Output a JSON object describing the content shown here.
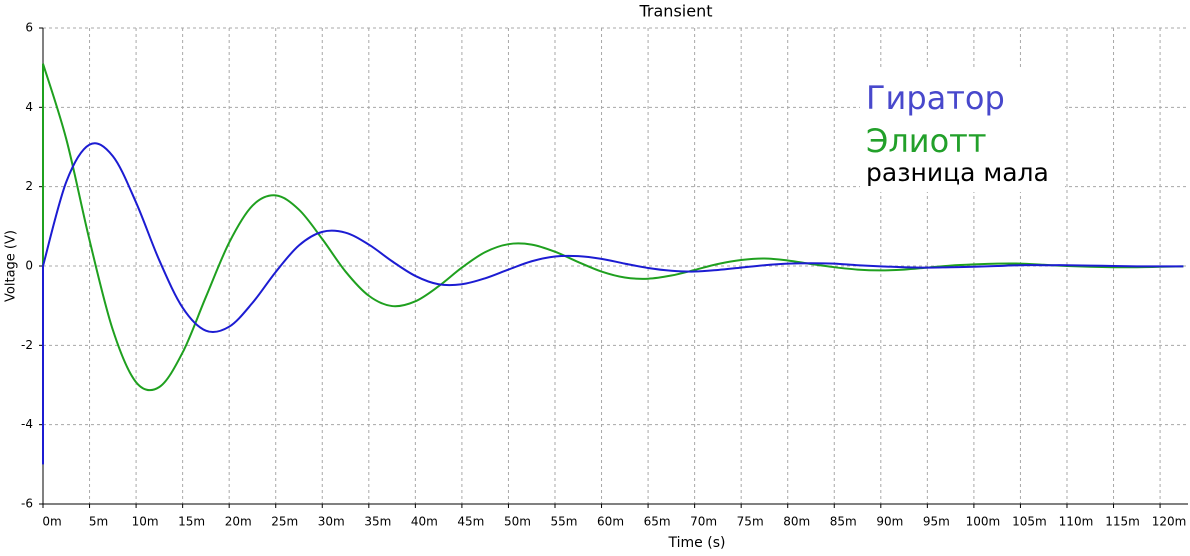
{
  "chart_data": {
    "type": "line",
    "title": "Transient",
    "x_label": "Time (s)",
    "y_label": "Voltage (V)",
    "x": [
      0,
      0,
      0.0025,
      0.005,
      0.0075,
      0.01,
      0.0125,
      0.015,
      0.0175,
      0.02,
      0.0225,
      0.025,
      0.0275,
      0.03,
      0.0325,
      0.035,
      0.0375,
      0.04,
      0.0425,
      0.045,
      0.0475,
      0.05,
      0.0525,
      0.055,
      0.0575,
      0.06,
      0.0625,
      0.065,
      0.0675,
      0.07,
      0.0725,
      0.075,
      0.0775,
      0.08,
      0.0825,
      0.085,
      0.0875,
      0.09,
      0.0925,
      0.095,
      0.0975,
      0.1,
      0.1025,
      0.105,
      0.1075,
      0.11,
      0.1125,
      0.115,
      0.1175,
      0.12,
      0.1225
    ],
    "series": [
      {
        "name": "Гиратор",
        "color": "#1c1cd2",
        "values": [
          -5.0,
          0,
          2.12,
          3.06,
          2.77,
          1.6,
          0.14,
          -1.05,
          -1.63,
          -1.53,
          -0.93,
          -0.15,
          0.52,
          0.86,
          0.84,
          0.54,
          0.12,
          -0.25,
          -0.46,
          -0.46,
          -0.31,
          -0.09,
          0.12,
          0.24,
          0.25,
          0.18,
          0.06,
          -0.05,
          -0.12,
          -0.14,
          -0.1,
          -0.04,
          0.02,
          0.06,
          0.07,
          0.06,
          0.02,
          -0.01,
          -0.03,
          -0.04,
          -0.03,
          -0.02,
          0.0,
          0.02,
          0.02,
          0.02,
          0.01,
          0.0,
          -0.01,
          -0.01,
          -0.01
        ]
      },
      {
        "name": "Элиотт",
        "color": "#1fa01f",
        "values": [
          0,
          5.1,
          3.2,
          0.65,
          -1.61,
          -2.93,
          -3.05,
          -2.18,
          -0.78,
          0.59,
          1.52,
          1.78,
          1.42,
          0.68,
          -0.14,
          -0.75,
          -1.01,
          -0.89,
          -0.51,
          -0.04,
          0.35,
          0.55,
          0.54,
          0.36,
          0.1,
          -0.14,
          -0.29,
          -0.32,
          -0.24,
          -0.1,
          0.05,
          0.15,
          0.19,
          0.14,
          0.05,
          -0.03,
          -0.09,
          -0.11,
          -0.09,
          -0.04,
          0.01,
          0.04,
          0.06,
          0.06,
          0.03,
          0.0,
          -0.02,
          -0.03,
          -0.03,
          -0.02,
          -0.01
        ]
      }
    ],
    "annotations": [
      {
        "text": "Гиратор",
        "color": "#4848cc"
      },
      {
        "text": "Элиотт",
        "color": "#22a02a"
      },
      {
        "text": "разница мала",
        "color": "#000000"
      }
    ],
    "xlim": [
      0,
      0.123
    ],
    "ylim": [
      -6,
      6
    ],
    "xticks": [
      {
        "value": 0,
        "label": "0m"
      },
      {
        "value": 0.005,
        "label": "5m"
      },
      {
        "value": 0.01,
        "label": "10m"
      },
      {
        "value": 0.015,
        "label": "15m"
      },
      {
        "value": 0.02,
        "label": "20m"
      },
      {
        "value": 0.025,
        "label": "25m"
      },
      {
        "value": 0.03,
        "label": "30m"
      },
      {
        "value": 0.035,
        "label": "35m"
      },
      {
        "value": 0.04,
        "label": "40m"
      },
      {
        "value": 0.045,
        "label": "45m"
      },
      {
        "value": 0.05,
        "label": "50m"
      },
      {
        "value": 0.055,
        "label": "55m"
      },
      {
        "value": 0.06,
        "label": "60m"
      },
      {
        "value": 0.065,
        "label": "65m"
      },
      {
        "value": 0.07,
        "label": "70m"
      },
      {
        "value": 0.075,
        "label": "75m"
      },
      {
        "value": 0.08,
        "label": "80m"
      },
      {
        "value": 0.085,
        "label": "85m"
      },
      {
        "value": 0.09,
        "label": "90m"
      },
      {
        "value": 0.095,
        "label": "95m"
      },
      {
        "value": 0.1,
        "label": "100m"
      },
      {
        "value": 0.105,
        "label": "105m"
      },
      {
        "value": 0.11,
        "label": "110m"
      },
      {
        "value": 0.115,
        "label": "115m"
      },
      {
        "value": 0.12,
        "label": "120m"
      }
    ],
    "yticks": [
      -6,
      -4,
      -2,
      0,
      2,
      4,
      6
    ],
    "grid": true
  }
}
